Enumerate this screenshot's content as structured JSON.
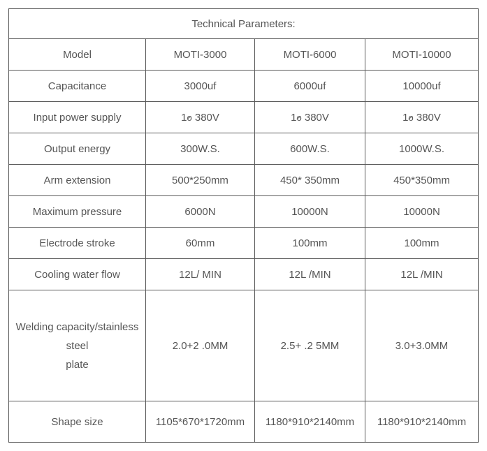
{
  "title": "Technical Parameters:",
  "headers": [
    "Model",
    "MOTI-3000",
    "MOTI-6000",
    "MOTI-10000"
  ],
  "rows": [
    {
      "label": "Capacitance",
      "c1": "3000uf",
      "c2": "6000uf",
      "c3": "10000uf"
    },
    {
      "label": "Input power supply",
      "c1": "1",
      "c2": "1",
      "c3": "1",
      "suffix1": "  380V",
      "suffix2": "  380V",
      "suffix3": "  380V"
    },
    {
      "label": "Output energy",
      "c1": "300W.S.",
      "c2": "600W.S.",
      "c3": "1000W.S."
    },
    {
      "label": "Arm extension",
      "c1": "500*250mm",
      "c2": "450* 350mm",
      "c3": "450*350mm"
    },
    {
      "label": "Maximum pressure",
      "c1": "6000N",
      "c2": "10000N",
      "c3": "10000N"
    },
    {
      "label": "Electrode stroke",
      "c1": "60mm",
      "c2": "100mm",
      "c3": "100mm"
    },
    {
      "label": "Cooling water flow",
      "c1": "12L/ MIN",
      "c2": "12L /MIN",
      "c3": "12L /MIN"
    }
  ],
  "weldrow": {
    "l1": "Welding capacity/stainless",
    "l2": "steel",
    "l3": "plate",
    "c1": "2.0+2 .0MM",
    "c2": "2.5+ .2 5MM",
    "c3": "3.0+3.0MM"
  },
  "shaperow": {
    "label": "Shape size",
    "c1": "1105*670*1720mm",
    "c2": "1180*910*2140mm",
    "c3": "1180*910*2140mm"
  },
  "phase_glyph": "o"
}
